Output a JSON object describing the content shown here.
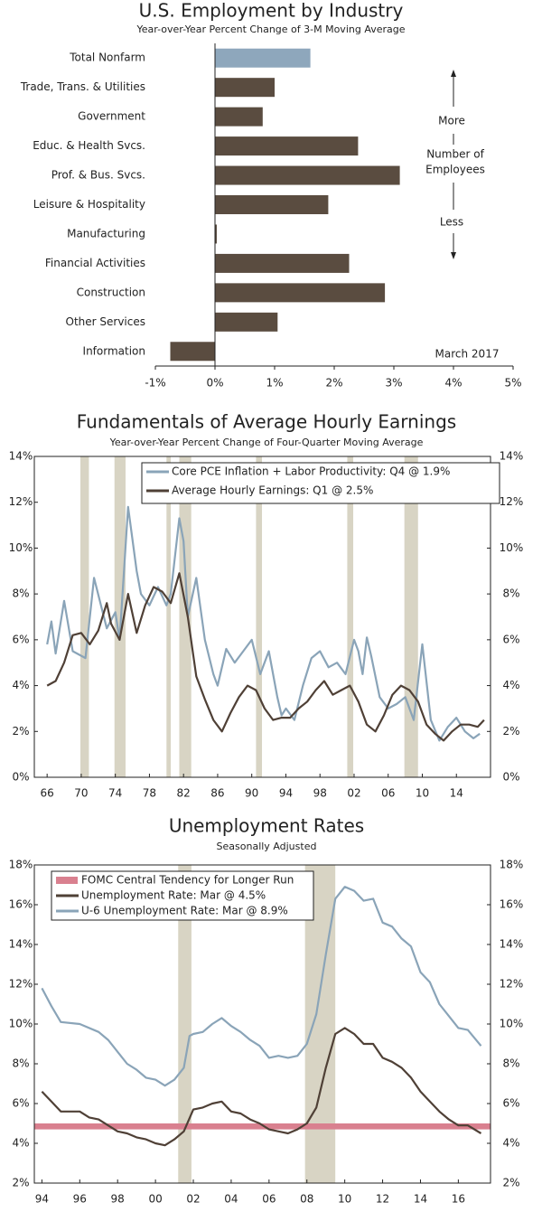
{
  "chart_data": [
    {
      "type": "barh",
      "title": "U.S. Employment by Industry",
      "subtitle": "Year-over-Year Percent Change of 3-M Moving Average",
      "categories": [
        "Total Nonfarm",
        "Trade, Trans. & Utilities",
        "Government",
        "Educ. & Health Svcs.",
        "Prof. & Bus. Svcs.",
        "Leisure & Hospitality",
        "Manufacturing",
        "Financial Activities",
        "Construction",
        "Other Services",
        "Information"
      ],
      "values": [
        1.6,
        1.0,
        0.8,
        2.4,
        3.1,
        1.9,
        0.03,
        2.25,
        2.85,
        1.05,
        -0.75
      ],
      "colors": [
        "#8ea7bc",
        "#5a4c40",
        "#5a4c40",
        "#5a4c40",
        "#5a4c40",
        "#5a4c40",
        "#5a4c40",
        "#5a4c40",
        "#5a4c40",
        "#5a4c40",
        "#5a4c40"
      ],
      "xlim": [
        -1,
        5
      ],
      "xticks": [
        {
          "value": -1,
          "label": "-1%"
        },
        {
          "value": 0,
          "label": "0%"
        },
        {
          "value": 1,
          "label": "1%"
        },
        {
          "value": 2,
          "label": "2%"
        },
        {
          "value": 3,
          "label": "3%"
        },
        {
          "value": 4,
          "label": "4%"
        },
        {
          "value": 5,
          "label": "5%"
        }
      ],
      "annotations": [
        "More",
        "Number of",
        "Employees",
        "Less",
        "March 2017"
      ]
    },
    {
      "type": "line",
      "title": "Fundamentals of Average Hourly Earnings",
      "subtitle": "Year-over-Year Percent Change of Four-Quarter Moving Average",
      "xlim": [
        1964.5,
        2018
      ],
      "ylim": [
        0,
        14
      ],
      "xticks": [
        {
          "value": 1966,
          "label": "66"
        },
        {
          "value": 1970,
          "label": "70"
        },
        {
          "value": 1974,
          "label": "74"
        },
        {
          "value": 1978,
          "label": "78"
        },
        {
          "value": 1982,
          "label": "82"
        },
        {
          "value": 1986,
          "label": "86"
        },
        {
          "value": 1990,
          "label": "90"
        },
        {
          "value": 1994,
          "label": "94"
        },
        {
          "value": 1998,
          "label": "98"
        },
        {
          "value": 2002,
          "label": "02"
        },
        {
          "value": 2006,
          "label": "06"
        },
        {
          "value": 2010,
          "label": "10"
        },
        {
          "value": 2014,
          "label": "14"
        }
      ],
      "yticks": [
        {
          "value": 0,
          "label": "0%"
        },
        {
          "value": 2,
          "label": "2%"
        },
        {
          "value": 4,
          "label": "4%"
        },
        {
          "value": 6,
          "label": "6%"
        },
        {
          "value": 8,
          "label": "8%"
        },
        {
          "value": 10,
          "label": "10%"
        },
        {
          "value": 12,
          "label": "12%"
        },
        {
          "value": 14,
          "label": "14%"
        }
      ],
      "shaded_ranges": [
        [
          1969.9,
          1970.9
        ],
        [
          1973.9,
          1975.2
        ],
        [
          1980.0,
          1980.5
        ],
        [
          1981.5,
          1982.9
        ],
        [
          1990.5,
          1991.2
        ],
        [
          2001.2,
          2001.9
        ],
        [
          2007.9,
          2009.5
        ]
      ],
      "shaded_color": "#d8d4c4",
      "legend": "upper right",
      "series": [
        {
          "name": "Core PCE Inflation + Labor Productivity: Q4 @ 1.9%",
          "color": "#8aa4b8",
          "x": [
            1966,
            1966.5,
            1967,
            1968,
            1969,
            1970.5,
            1971.5,
            1973,
            1974,
            1974.5,
            1975.5,
            1976.5,
            1977,
            1978,
            1979,
            1980,
            1980.5,
            1981.5,
            1982,
            1982.5,
            1983.5,
            1984.5,
            1985.5,
            1986,
            1987,
            1988,
            1989,
            1990,
            1991,
            1992,
            1993,
            1993.5,
            1994,
            1995,
            1996,
            1997,
            1998,
            1999,
            2000,
            2001,
            2002,
            2002.5,
            2003,
            2003.5,
            2004,
            2005,
            2006,
            2007,
            2008,
            2009,
            2010,
            2011,
            2012,
            2013,
            2014,
            2015,
            2016,
            2016.75
          ],
          "values": [
            5.8,
            6.8,
            5.4,
            7.7,
            5.5,
            5.2,
            8.7,
            6.5,
            7.2,
            6.0,
            11.8,
            9.0,
            8.0,
            7.5,
            8.3,
            7.5,
            8.0,
            11.3,
            10.3,
            7.0,
            8.7,
            6.0,
            4.5,
            4.0,
            5.6,
            5.0,
            5.5,
            6.0,
            4.5,
            5.5,
            3.5,
            2.7,
            3.0,
            2.5,
            4.0,
            5.2,
            5.5,
            4.8,
            5.0,
            4.5,
            6.0,
            5.5,
            4.5,
            6.1,
            5.3,
            3.5,
            3.0,
            3.2,
            3.5,
            2.5,
            5.8,
            2.5,
            1.6,
            2.2,
            2.6,
            2.0,
            1.7,
            1.9
          ]
        },
        {
          "name": "Average Hourly Earnings: Q1 @ 2.5%",
          "color": "#4f4036",
          "x": [
            1966,
            1967,
            1968,
            1969,
            1970,
            1971,
            1972,
            1973,
            1973.5,
            1974.5,
            1975.5,
            1976.5,
            1977.5,
            1978.5,
            1979.5,
            1980.5,
            1981.5,
            1982.5,
            1983.5,
            1984.5,
            1985.5,
            1986.5,
            1987.5,
            1988.5,
            1989.5,
            1990.5,
            1991.5,
            1992.5,
            1993.5,
            1994.5,
            1995.5,
            1996.5,
            1997.5,
            1998.5,
            1999.5,
            2000.5,
            2001.5,
            2002.5,
            2003.5,
            2004.5,
            2005.5,
            2006.5,
            2007.5,
            2008.5,
            2009.5,
            2010.5,
            2011.5,
            2012.5,
            2013.5,
            2014.5,
            2015.5,
            2016.5,
            2017.25
          ],
          "values": [
            4.0,
            4.2,
            5.0,
            6.2,
            6.3,
            5.8,
            6.4,
            7.6,
            6.7,
            6.0,
            8.0,
            6.3,
            7.5,
            8.3,
            8.1,
            7.6,
            8.9,
            7.0,
            4.4,
            3.4,
            2.5,
            2.0,
            2.8,
            3.5,
            4.0,
            3.8,
            3.0,
            2.5,
            2.6,
            2.6,
            3.0,
            3.3,
            3.8,
            4.2,
            3.6,
            3.8,
            4.0,
            3.3,
            2.3,
            2.0,
            2.7,
            3.6,
            4.0,
            3.8,
            3.3,
            2.3,
            1.9,
            1.6,
            2.0,
            2.3,
            2.3,
            2.2,
            2.5
          ]
        }
      ]
    },
    {
      "type": "line",
      "title": "Unemployment Rates",
      "subtitle": "Seasonally Adjusted",
      "xlim": [
        1993.6,
        2017.7
      ],
      "ylim": [
        2,
        18
      ],
      "xticks": [
        {
          "value": 1994,
          "label": "94"
        },
        {
          "value": 1996,
          "label": "96"
        },
        {
          "value": 1998,
          "label": "98"
        },
        {
          "value": 2000,
          "label": "00"
        },
        {
          "value": 2002,
          "label": "02"
        },
        {
          "value": 2004,
          "label": "04"
        },
        {
          "value": 2006,
          "label": "06"
        },
        {
          "value": 2008,
          "label": "08"
        },
        {
          "value": 2010,
          "label": "10"
        },
        {
          "value": 2012,
          "label": "12"
        },
        {
          "value": 2014,
          "label": "14"
        },
        {
          "value": 2016,
          "label": "16"
        }
      ],
      "yticks": [
        {
          "value": 2,
          "label": "2%"
        },
        {
          "value": 4,
          "label": "4%"
        },
        {
          "value": 6,
          "label": "6%"
        },
        {
          "value": 8,
          "label": "8%"
        },
        {
          "value": 10,
          "label": "10%"
        },
        {
          "value": 12,
          "label": "12%"
        },
        {
          "value": 14,
          "label": "14%"
        },
        {
          "value": 16,
          "label": "16%"
        },
        {
          "value": 18,
          "label": "18%"
        }
      ],
      "shaded_ranges": [
        [
          2001.2,
          2001.9
        ],
        [
          2007.9,
          2009.5
        ]
      ],
      "shaded_color": "#d8d4c4",
      "legend": "upper left",
      "series": [
        {
          "name": "FOMC Central Tendency for Longer Run",
          "color": "#d9808f",
          "range": [
            4.7,
            5.0
          ]
        },
        {
          "name": "Unemployment Rate: Mar @ 4.5%",
          "color": "#4f4036",
          "x": [
            1994,
            1994.5,
            1995,
            1996,
            1996.5,
            1997,
            1997.5,
            1998,
            1998.5,
            1999,
            1999.5,
            2000,
            2000.5,
            2001,
            2001.5,
            2002,
            2002.5,
            2003,
            2003.5,
            2004,
            2004.5,
            2005,
            2005.5,
            2006,
            2006.5,
            2007,
            2007.5,
            2008,
            2008.5,
            2009,
            2009.5,
            2010,
            2010.5,
            2011,
            2011.5,
            2012,
            2012.5,
            2013,
            2013.5,
            2014,
            2014.5,
            2015,
            2015.5,
            2016,
            2016.5,
            2017.2
          ],
          "values": [
            6.6,
            6.1,
            5.6,
            5.6,
            5.3,
            5.2,
            4.9,
            4.6,
            4.5,
            4.3,
            4.2,
            4.0,
            3.9,
            4.2,
            4.6,
            5.7,
            5.8,
            6.0,
            6.1,
            5.6,
            5.5,
            5.2,
            5.0,
            4.7,
            4.6,
            4.5,
            4.7,
            5.0,
            5.8,
            7.8,
            9.5,
            9.8,
            9.5,
            9.0,
            9.0,
            8.3,
            8.1,
            7.8,
            7.3,
            6.6,
            6.1,
            5.6,
            5.2,
            4.9,
            4.9,
            4.5
          ]
        },
        {
          "name": "U-6 Unemployment Rate: Mar @ 8.9%",
          "color": "#8aa4b8",
          "x": [
            1994,
            1994.5,
            1995,
            1996,
            1997,
            1997.5,
            1998,
            1998.5,
            1999,
            1999.5,
            2000,
            2000.5,
            2001,
            2001.5,
            2001.8,
            2002,
            2002.5,
            2003,
            2003.5,
            2004,
            2004.5,
            2005,
            2005.5,
            2006,
            2006.5,
            2007,
            2007.5,
            2008,
            2008.5,
            2009,
            2009.5,
            2010,
            2010.5,
            2011,
            2011.5,
            2012,
            2012.5,
            2013,
            2013.5,
            2014,
            2014.5,
            2015,
            2015.5,
            2016,
            2016.5,
            2017.2
          ],
          "values": [
            11.8,
            10.9,
            10.1,
            10.0,
            9.6,
            9.2,
            8.6,
            8.0,
            7.7,
            7.3,
            7.2,
            6.9,
            7.2,
            7.8,
            9.4,
            9.5,
            9.6,
            10.0,
            10.3,
            9.9,
            9.6,
            9.2,
            8.9,
            8.3,
            8.4,
            8.3,
            8.4,
            9.0,
            10.5,
            13.5,
            16.3,
            16.9,
            16.7,
            16.2,
            16.3,
            15.1,
            14.9,
            14.3,
            13.9,
            12.6,
            12.1,
            11.0,
            10.4,
            9.8,
            9.7,
            8.9
          ]
        }
      ]
    }
  ]
}
